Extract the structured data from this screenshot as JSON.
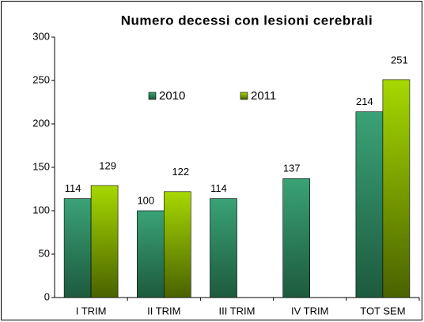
{
  "chart_data": {
    "type": "bar",
    "title": "Numero decessi con lesioni cerebrali",
    "categories": [
      "I TRIM",
      "II TRIM",
      "III TRIM",
      "IV TRIM",
      "TOT SEM"
    ],
    "series": [
      {
        "name": "2010",
        "color": "#2e8a60",
        "values": [
          114,
          100,
          114,
          137,
          214
        ]
      },
      {
        "name": "2011",
        "color": "#8fbf00",
        "values": [
          129,
          122,
          null,
          null,
          251
        ]
      }
    ],
    "ylim": [
      0,
      300
    ],
    "yticks": [
      0,
      50,
      100,
      150,
      200,
      250,
      300
    ],
    "grid": false,
    "legend": "top-center"
  }
}
